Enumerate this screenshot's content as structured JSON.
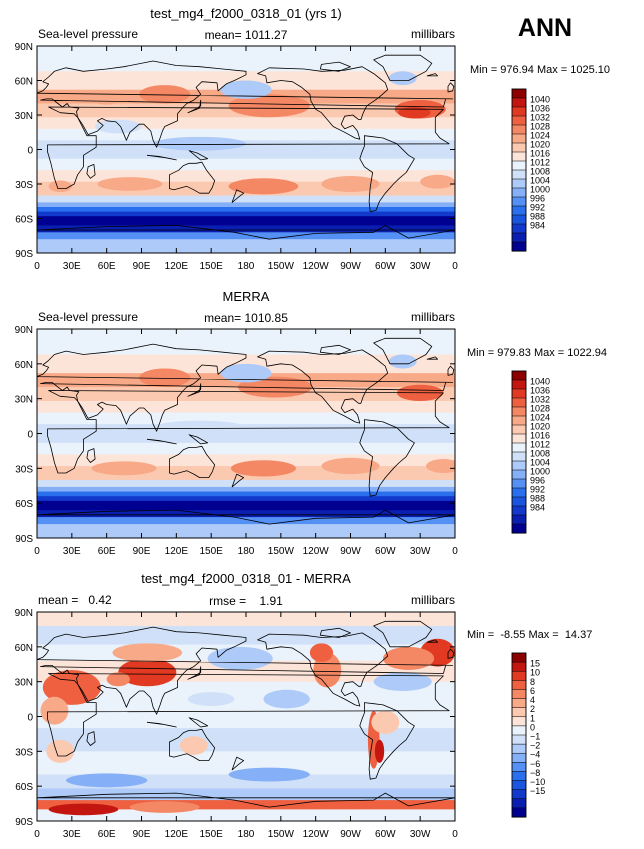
{
  "page": {
    "season": "ANN"
  },
  "colors": {
    "land_outline": "#000000",
    "abs_scale": [
      "#000090",
      "#0a1fb0",
      "#1238cc",
      "#1a55e0",
      "#2a70ee",
      "#5590f5",
      "#85b0f8",
      "#adcaf8",
      "#cfe0f8",
      "#eaf2fb",
      "#fde4d8",
      "#fbc9b0",
      "#f8aa88",
      "#f48864",
      "#ee6040",
      "#e23a22",
      "#c41610",
      "#8c0000"
    ],
    "diff_scale": [
      "#000090",
      "#0a1fb0",
      "#1238cc",
      "#1a55e0",
      "#2a70ee",
      "#5590f5",
      "#85b0f8",
      "#adcaf8",
      "#cfe0f8",
      "#eaf2fb",
      "#fde4d8",
      "#fbc9b0",
      "#f8aa88",
      "#f48864",
      "#ee6040",
      "#e23a22",
      "#c41610",
      "#8c0000"
    ]
  },
  "chart_data": [
    {
      "type": "heatmap",
      "id": "model",
      "title": "test_mg4_f2000_0318_01 (yrs 1)",
      "left_label": "Sea-level pressure",
      "center_label": "mean= 1011.27",
      "right_label": "millibars",
      "minmax_label": "Min = 976.94 Max = 1025.10",
      "min": 976.94,
      "max": 1025.1,
      "mean": 1011.27,
      "xticks": [
        "0",
        "30E",
        "60E",
        "90E",
        "120E",
        "150E",
        "180",
        "150W",
        "120W",
        "90W",
        "60W",
        "30W",
        "0"
      ],
      "yticks": [
        "90N",
        "60N",
        "30N",
        "0",
        "30S",
        "60S",
        "90S"
      ],
      "colorbar_levels": [
        "1040",
        "1036",
        "1032",
        "1028",
        "1024",
        "1020",
        "1016",
        "1012",
        "1008",
        "1004",
        "1000",
        "996",
        "992",
        "988",
        "984"
      ],
      "scale": "abs"
    },
    {
      "type": "heatmap",
      "id": "obs",
      "title": "MERRA",
      "left_label": "Sea-level pressure",
      "center_label": "mean= 1010.85",
      "right_label": "millibars",
      "minmax_label": "Min = 979.83 Max = 1022.94",
      "min": 979.83,
      "max": 1022.94,
      "mean": 1010.85,
      "xticks": [
        "0",
        "30E",
        "60E",
        "90E",
        "120E",
        "150E",
        "180",
        "150W",
        "120W",
        "90W",
        "60W",
        "30W",
        "0"
      ],
      "yticks": [
        "90N",
        "60N",
        "30N",
        "0",
        "30S",
        "60S",
        "90S"
      ],
      "colorbar_levels": [
        "1040",
        "1036",
        "1032",
        "1028",
        "1024",
        "1020",
        "1016",
        "1012",
        "1008",
        "1004",
        "1000",
        "996",
        "992",
        "988",
        "984"
      ],
      "scale": "abs"
    },
    {
      "type": "heatmap",
      "id": "diff",
      "title": "test_mg4_f2000_0318_01 - MERRA",
      "left_label": "mean =   0.42",
      "center_label": "rmse =    1.91",
      "right_label": "millibars",
      "minmax_label": "Min =  -8.55 Max =  14.37",
      "min": -8.55,
      "max": 14.37,
      "mean": 0.42,
      "rmse": 1.91,
      "xticks": [
        "0",
        "30E",
        "60E",
        "90E",
        "120E",
        "150E",
        "180",
        "150W",
        "120W",
        "90W",
        "60W",
        "30W",
        "0"
      ],
      "yticks": [
        "90N",
        "60N",
        "30N",
        "0",
        "30S",
        "60S",
        "90S"
      ],
      "colorbar_levels": [
        "15",
        "10",
        "8",
        "6",
        "4",
        "2",
        "1",
        "0",
        "−1",
        "−2",
        "−4",
        "−6",
        "−8",
        "−10",
        "−15"
      ],
      "scale": "diff"
    }
  ]
}
